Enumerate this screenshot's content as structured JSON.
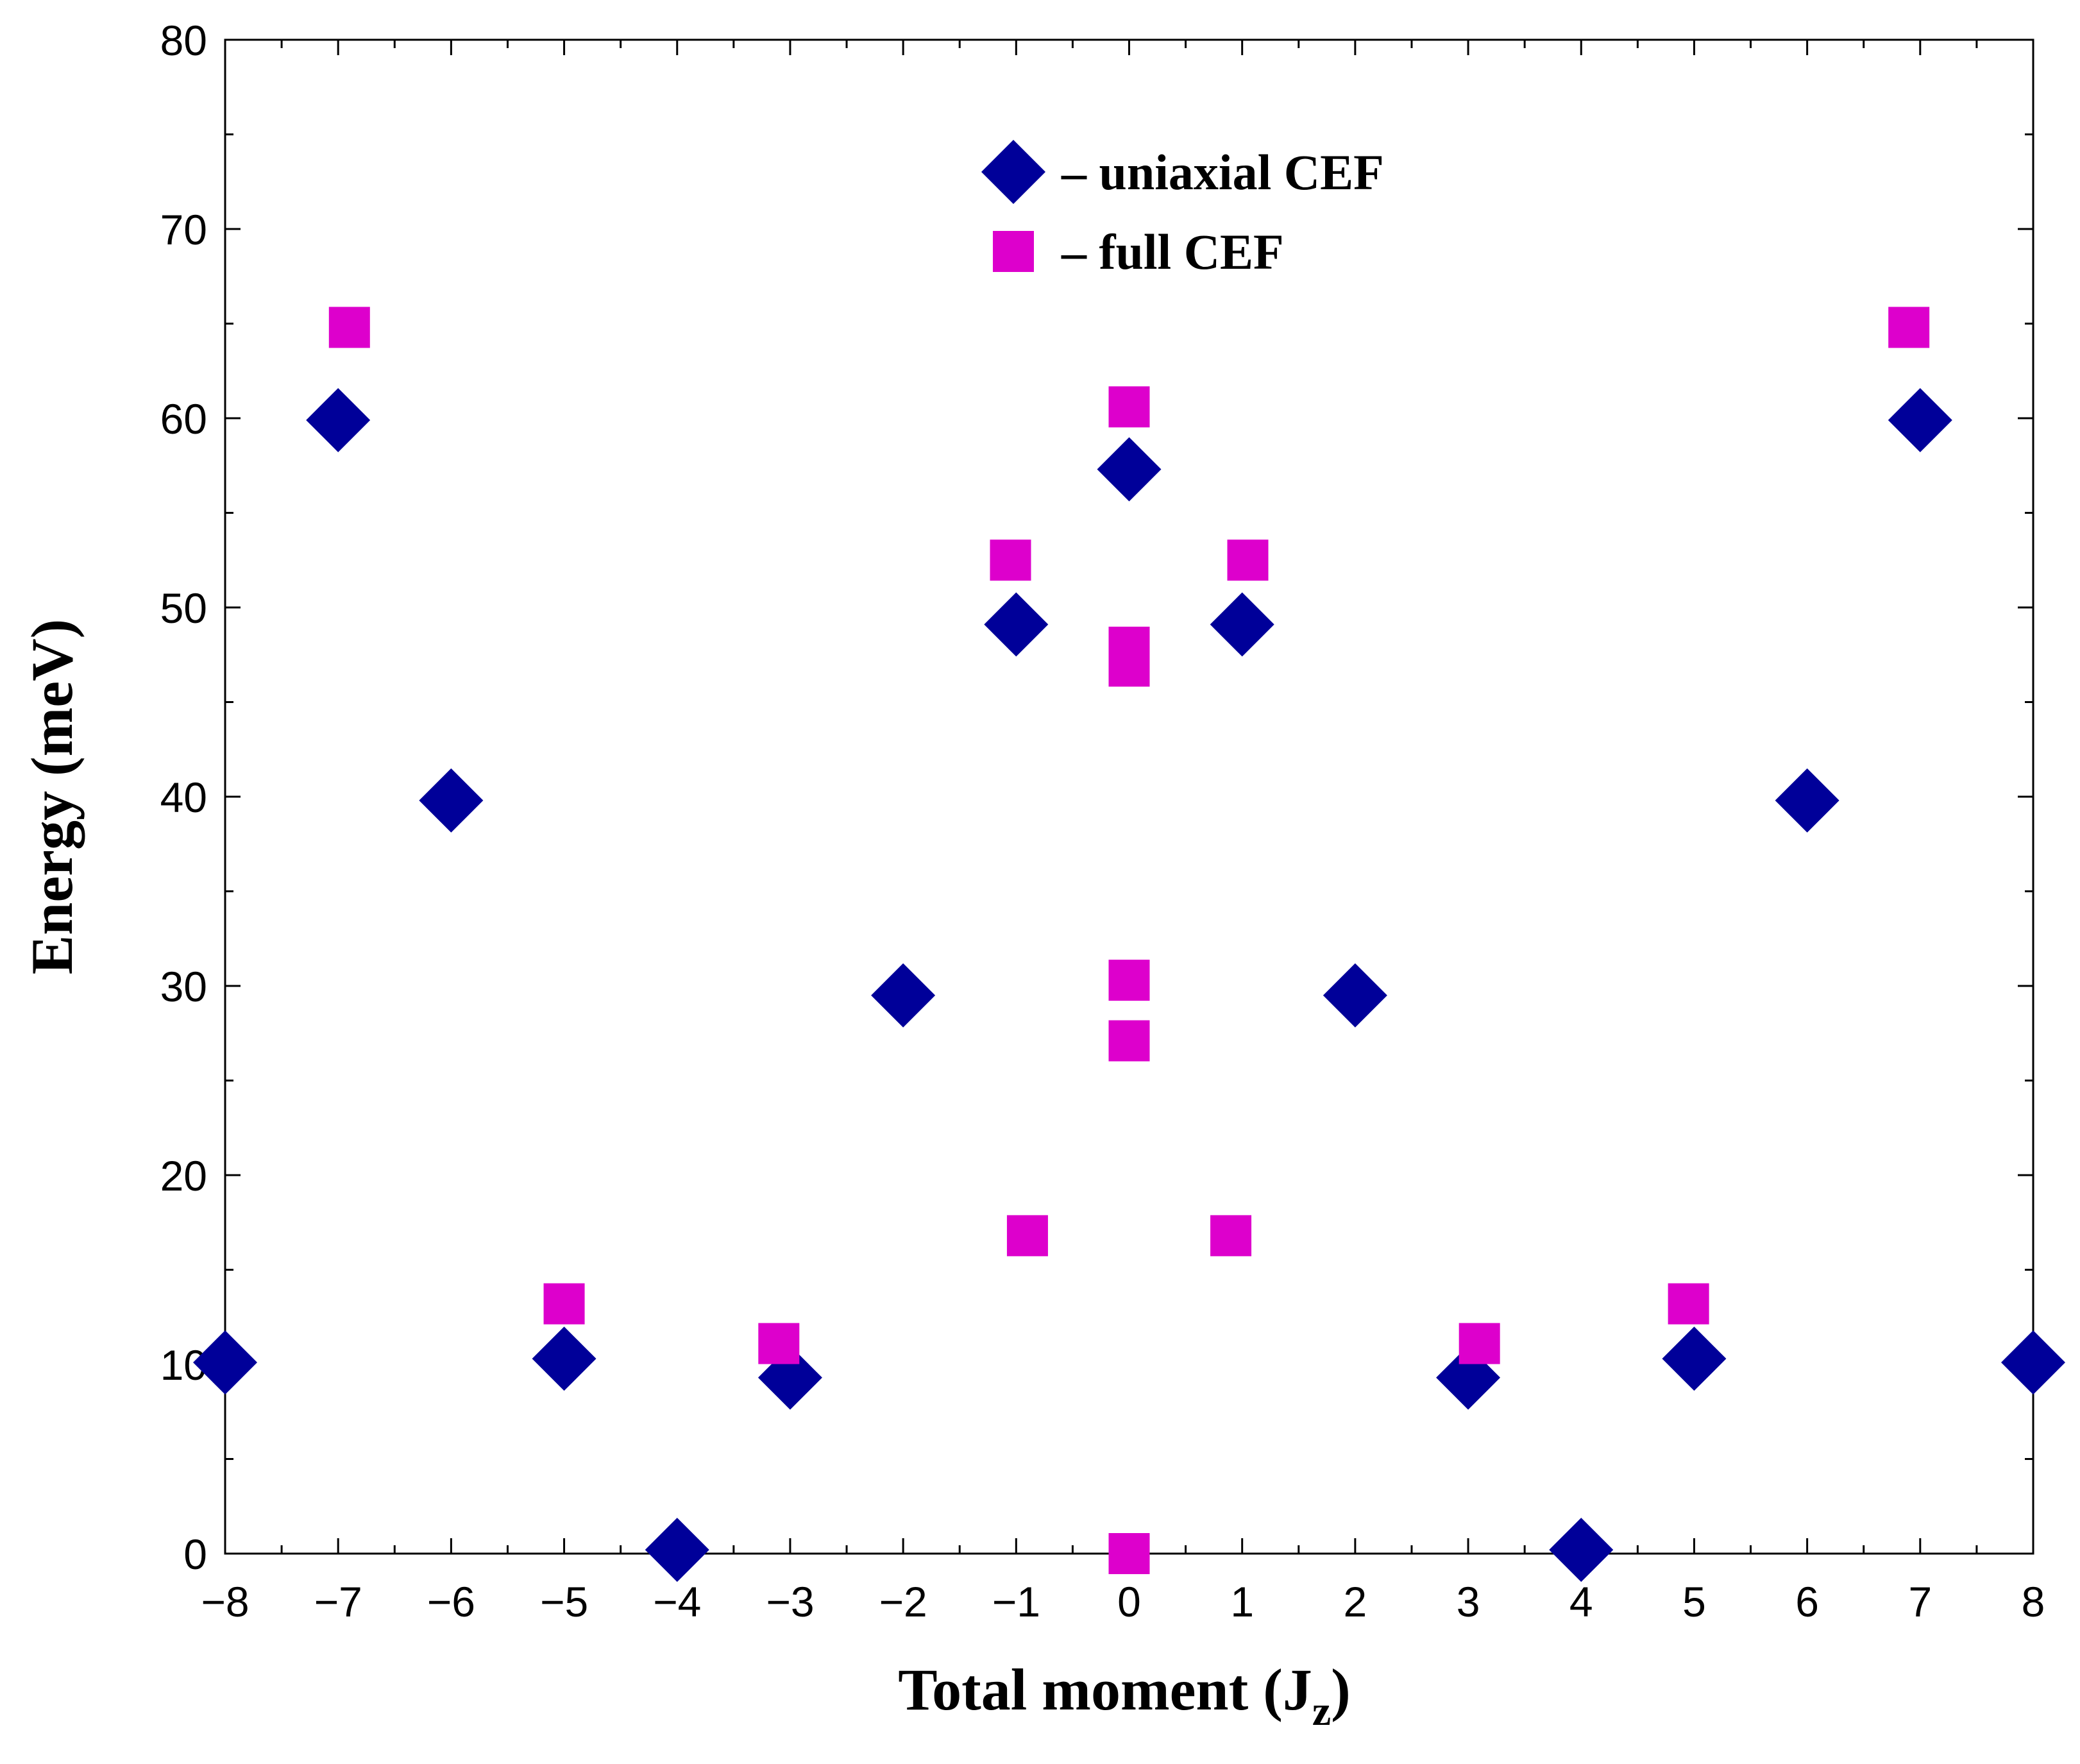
{
  "chart_data": {
    "type": "scatter",
    "xlabel": "Total moment  (J",
    "xlabel_sub": "z",
    "xlabel_close": ")",
    "ylabel": "Energy  (meV)",
    "xlim": [
      -8,
      8
    ],
    "ylim": [
      0,
      80
    ],
    "x_ticks": [
      -8,
      -7,
      -6,
      -5,
      -4,
      -3,
      -2,
      -1,
      0,
      1,
      2,
      3,
      4,
      5,
      6,
      7,
      8
    ],
    "x_tick_labels": [
      "−8",
      "−7",
      "−6",
      "−5",
      "−4",
      "−3",
      "−2",
      "−1",
      "0",
      "1",
      "2",
      "3",
      "4",
      "5",
      "6",
      "7",
      "8"
    ],
    "y_ticks": [
      0,
      10,
      20,
      30,
      40,
      50,
      60,
      70,
      80
    ],
    "y_tick_labels": [
      "0",
      "10",
      "20",
      "30",
      "40",
      "50",
      "60",
      "70",
      "80"
    ],
    "grid": false,
    "legend_position": "top-center",
    "series": [
      {
        "name": "– uniaxial CEF",
        "marker": "diamond",
        "color": "#000099",
        "points": [
          {
            "x": -8,
            "y": 10.1
          },
          {
            "x": -7,
            "y": 59.9
          },
          {
            "x": -6,
            "y": 39.8
          },
          {
            "x": -5,
            "y": 10.3
          },
          {
            "x": -4,
            "y": 0.2
          },
          {
            "x": -3,
            "y": 9.3
          },
          {
            "x": -2,
            "y": 29.5
          },
          {
            "x": -1,
            "y": 49.1
          },
          {
            "x": 0,
            "y": 57.3
          },
          {
            "x": 1,
            "y": 49.1
          },
          {
            "x": 2,
            "y": 29.5
          },
          {
            "x": 3,
            "y": 9.3
          },
          {
            "x": 4,
            "y": 0.2
          },
          {
            "x": 5,
            "y": 10.3
          },
          {
            "x": 6,
            "y": 39.8
          },
          {
            "x": 7,
            "y": 59.9
          },
          {
            "x": 8,
            "y": 10.1
          }
        ]
      },
      {
        "name": "– full CEF",
        "marker": "square",
        "color": "#dd00cc",
        "points": [
          {
            "x": -6.9,
            "y": 64.8
          },
          {
            "x": -5,
            "y": 13.2
          },
          {
            "x": -3.1,
            "y": 11.1
          },
          {
            "x": -1.05,
            "y": 52.5
          },
          {
            "x": -0.9,
            "y": 16.8
          },
          {
            "x": 0,
            "y": 60.6
          },
          {
            "x": 0,
            "y": 47.9
          },
          {
            "x": 0,
            "y": 46.9
          },
          {
            "x": 0,
            "y": 30.3
          },
          {
            "x": 0,
            "y": 27.1
          },
          {
            "x": 0,
            "y": 0
          },
          {
            "x": 1.05,
            "y": 52.5
          },
          {
            "x": 0.9,
            "y": 16.8
          },
          {
            "x": 3.1,
            "y": 11.1
          },
          {
            "x": 4.95,
            "y": 13.2
          },
          {
            "x": 6.9,
            "y": 64.8
          }
        ]
      }
    ]
  }
}
